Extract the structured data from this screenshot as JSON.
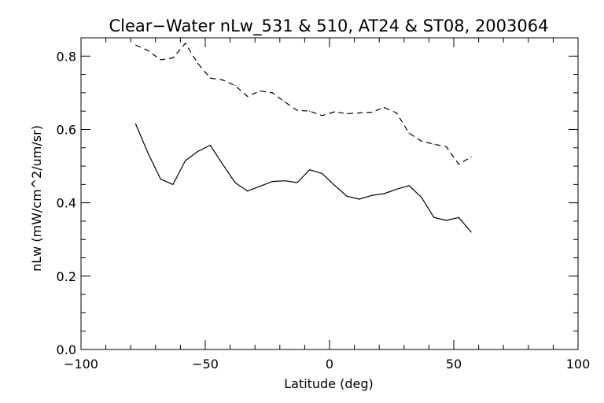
{
  "chart_data": {
    "type": "line",
    "title": "Clear−Water nLw_531 & 510, AT24 & ST08, 2003064",
    "xlabel": "Latitude (deg)",
    "ylabel": "nLw (mW/cm^2/um/sr)",
    "xlim": [
      -100,
      100
    ],
    "ylim": [
      0,
      0.85
    ],
    "x_ticks": [
      "−100",
      "−50",
      "0",
      "50",
      "100"
    ],
    "y_ticks": [
      "0.0",
      "0.2",
      "0.4",
      "0.6",
      "0.8"
    ],
    "grid": false,
    "series": [
      {
        "style": "solid",
        "color": "#000000",
        "x": [
          -78,
          -73,
          -68,
          -63,
          -58,
          -53,
          -48,
          -43,
          -38,
          -33,
          -28,
          -23,
          -18,
          -13,
          -8,
          -3,
          2,
          7,
          12,
          17,
          22,
          27,
          32,
          37,
          42,
          47,
          52,
          57
        ],
        "y": [
          0.615,
          0.535,
          0.465,
          0.45,
          0.515,
          0.54,
          0.557,
          0.505,
          0.455,
          0.432,
          0.445,
          0.458,
          0.46,
          0.455,
          0.49,
          0.48,
          0.448,
          0.418,
          0.41,
          0.42,
          0.425,
          0.437,
          0.447,
          0.415,
          0.36,
          0.352,
          0.36,
          0.32
        ]
      },
      {
        "style": "dashed",
        "color": "#000000",
        "x": [
          -78,
          -73,
          -68,
          -63,
          -58,
          -53,
          -48,
          -43,
          -38,
          -33,
          -28,
          -23,
          -18,
          -13,
          -8,
          -3,
          2,
          7,
          12,
          17,
          22,
          27,
          32,
          37,
          42,
          47,
          52,
          57
        ],
        "y": [
          0.83,
          0.815,
          0.79,
          0.795,
          0.835,
          0.78,
          0.74,
          0.735,
          0.72,
          0.69,
          0.705,
          0.7,
          0.675,
          0.652,
          0.65,
          0.638,
          0.648,
          0.643,
          0.645,
          0.647,
          0.66,
          0.645,
          0.59,
          0.568,
          0.56,
          0.553,
          0.505,
          0.525
        ]
      }
    ]
  }
}
